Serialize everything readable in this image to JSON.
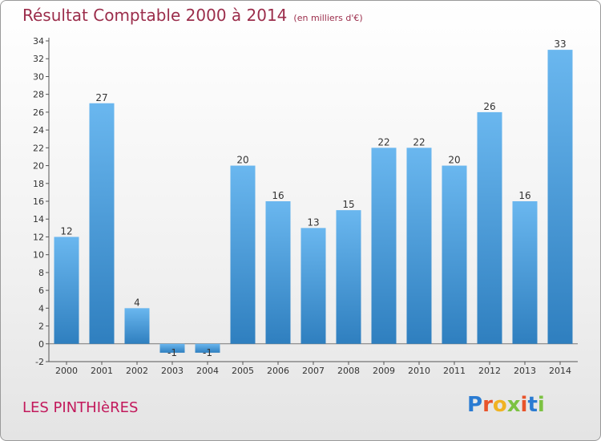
{
  "title": "Résultat Comptable 2000 à 2014",
  "subtitle": "(en milliers d'€)",
  "commune": "LES PINTHIèRES",
  "logo": {
    "letters": [
      "P",
      "r",
      "o",
      "x",
      "i",
      "t",
      "i"
    ],
    "colors": [
      "#2a7bd2",
      "#e8532a",
      "#f0b322",
      "#7cc242",
      "#e8532a",
      "#2a7bd2",
      "#7cc242"
    ]
  },
  "colors": {
    "bar_light": "#6ab7ef",
    "bar_dark": "#2f7fbf",
    "title": "#9b2d4b",
    "commune": "#c2185b"
  },
  "chart_data": {
    "type": "bar",
    "title": "Résultat Comptable 2000 à 2014",
    "xlabel": "",
    "ylabel": "en milliers d'€",
    "ylim": [
      -2,
      34
    ],
    "yticks": [
      -2,
      0,
      2,
      4,
      6,
      8,
      10,
      12,
      14,
      16,
      18,
      20,
      22,
      24,
      26,
      28,
      30,
      32,
      34
    ],
    "grid": false,
    "categories": [
      "2000",
      "2001",
      "2002",
      "2003",
      "2004",
      "2005",
      "2006",
      "2007",
      "2008",
      "2009",
      "2010",
      "2011",
      "2012",
      "2013",
      "2014"
    ],
    "values": [
      12,
      27,
      4,
      -1,
      -1,
      20,
      16,
      13,
      15,
      22,
      22,
      20,
      26,
      16,
      33
    ]
  }
}
